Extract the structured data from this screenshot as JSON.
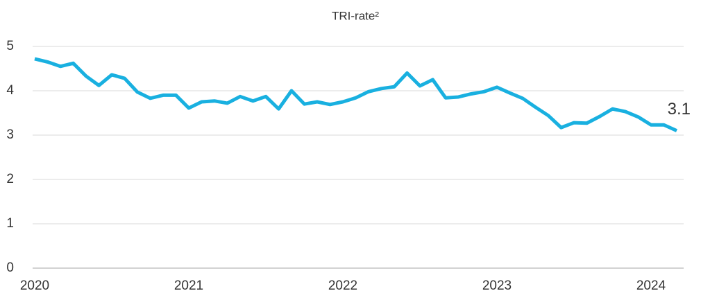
{
  "chart_data": {
    "type": "line",
    "title": "TRI-rate²",
    "categories": [
      "2020",
      null,
      null,
      null,
      null,
      null,
      null,
      null,
      null,
      null,
      null,
      null,
      "2021",
      null,
      null,
      null,
      null,
      null,
      null,
      null,
      null,
      null,
      null,
      null,
      "2022",
      null,
      null,
      null,
      null,
      null,
      null,
      null,
      null,
      null,
      null,
      null,
      "2023",
      null,
      null,
      null,
      null,
      null,
      null,
      null,
      null,
      null,
      null,
      null,
      "2024",
      null,
      null
    ],
    "series": [
      {
        "name": "TRI-rate",
        "color": "#19b0e0",
        "values": [
          4.72,
          4.65,
          4.55,
          4.62,
          4.33,
          4.12,
          4.36,
          4.28,
          3.97,
          3.83,
          3.9,
          3.9,
          3.61,
          3.75,
          3.77,
          3.72,
          3.87,
          3.77,
          3.87,
          3.59,
          4.0,
          3.7,
          3.75,
          3.69,
          3.75,
          3.84,
          3.98,
          4.05,
          4.09,
          4.4,
          4.11,
          4.25,
          3.84,
          3.86,
          3.93,
          3.98,
          4.08,
          3.95,
          3.83,
          3.63,
          3.44,
          3.17,
          3.28,
          3.27,
          3.42,
          3.59,
          3.53,
          3.41,
          3.23,
          3.23,
          3.1
        ]
      }
    ],
    "ylim": [
      0,
      5
    ],
    "yticks": [
      0,
      1,
      2,
      3,
      4,
      5
    ],
    "grid": true
  }
}
